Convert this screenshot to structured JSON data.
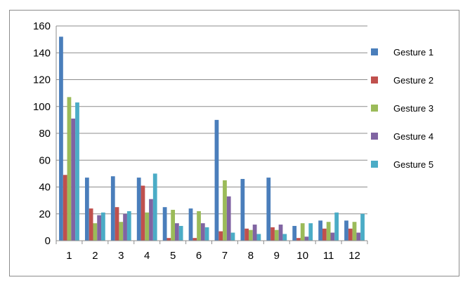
{
  "chart_data": {
    "type": "bar",
    "title": "",
    "xlabel": "",
    "ylabel": "",
    "categories": [
      "1",
      "2",
      "3",
      "4",
      "5",
      "6",
      "7",
      "8",
      "9",
      "10",
      "11",
      "12"
    ],
    "ylim": [
      0,
      160
    ],
    "yticks": [
      0,
      20,
      40,
      60,
      80,
      100,
      120,
      140,
      160
    ],
    "grid": true,
    "legend_position": "right",
    "series": [
      {
        "name": "Gesture 1",
        "color": "#4a7ebb",
        "values": [
          152,
          47,
          48,
          47,
          25,
          24,
          90,
          46,
          47,
          11,
          15,
          15
        ]
      },
      {
        "name": "Gesture 2",
        "color": "#c0504d",
        "values": [
          49,
          24,
          25,
          41,
          2,
          2,
          7,
          9,
          10,
          2,
          9,
          9
        ]
      },
      {
        "name": "Gesture 3",
        "color": "#9bbb59",
        "values": [
          107,
          13,
          14,
          21,
          23,
          22,
          45,
          8,
          8,
          13,
          14,
          14
        ]
      },
      {
        "name": "Gesture 4",
        "color": "#8064a2",
        "values": [
          91,
          19,
          20,
          31,
          13,
          13,
          33,
          12,
          12,
          3,
          6,
          6
        ]
      },
      {
        "name": "Gesture 5",
        "color": "#4bacc6",
        "values": [
          103,
          21,
          22,
          50,
          11,
          10,
          6,
          5,
          5,
          13,
          21,
          20
        ]
      }
    ]
  }
}
